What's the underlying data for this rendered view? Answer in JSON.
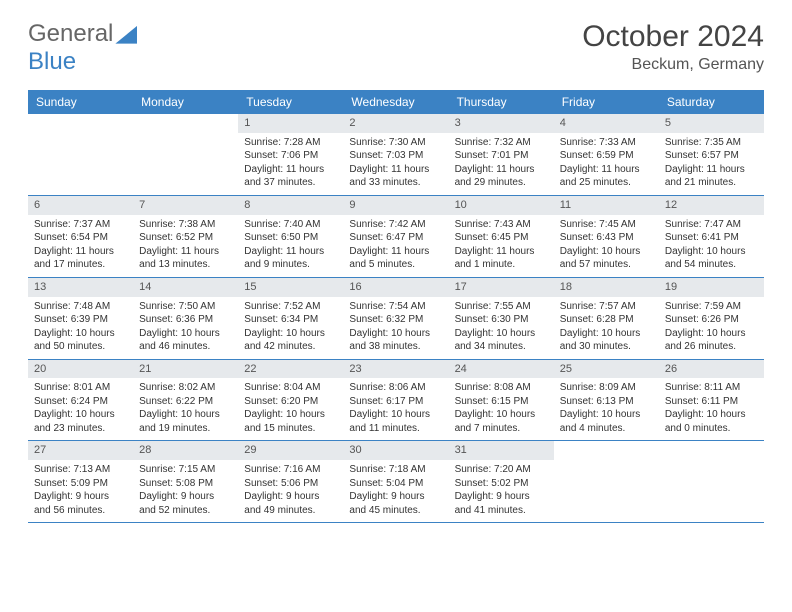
{
  "logo": {
    "text1": "General",
    "text2": "Blue"
  },
  "title": "October 2024",
  "location": "Beckum, Germany",
  "header_bg": "#3b82c4",
  "daynum_bg": "#e6e9ec",
  "row_border": "#3b82c4",
  "weekdays": [
    "Sunday",
    "Monday",
    "Tuesday",
    "Wednesday",
    "Thursday",
    "Friday",
    "Saturday"
  ],
  "weeks": [
    [
      null,
      null,
      {
        "n": "1",
        "sr": "Sunrise: 7:28 AM",
        "ss": "Sunset: 7:06 PM",
        "dl": "Daylight: 11 hours and 37 minutes."
      },
      {
        "n": "2",
        "sr": "Sunrise: 7:30 AM",
        "ss": "Sunset: 7:03 PM",
        "dl": "Daylight: 11 hours and 33 minutes."
      },
      {
        "n": "3",
        "sr": "Sunrise: 7:32 AM",
        "ss": "Sunset: 7:01 PM",
        "dl": "Daylight: 11 hours and 29 minutes."
      },
      {
        "n": "4",
        "sr": "Sunrise: 7:33 AM",
        "ss": "Sunset: 6:59 PM",
        "dl": "Daylight: 11 hours and 25 minutes."
      },
      {
        "n": "5",
        "sr": "Sunrise: 7:35 AM",
        "ss": "Sunset: 6:57 PM",
        "dl": "Daylight: 11 hours and 21 minutes."
      }
    ],
    [
      {
        "n": "6",
        "sr": "Sunrise: 7:37 AM",
        "ss": "Sunset: 6:54 PM",
        "dl": "Daylight: 11 hours and 17 minutes."
      },
      {
        "n": "7",
        "sr": "Sunrise: 7:38 AM",
        "ss": "Sunset: 6:52 PM",
        "dl": "Daylight: 11 hours and 13 minutes."
      },
      {
        "n": "8",
        "sr": "Sunrise: 7:40 AM",
        "ss": "Sunset: 6:50 PM",
        "dl": "Daylight: 11 hours and 9 minutes."
      },
      {
        "n": "9",
        "sr": "Sunrise: 7:42 AM",
        "ss": "Sunset: 6:47 PM",
        "dl": "Daylight: 11 hours and 5 minutes."
      },
      {
        "n": "10",
        "sr": "Sunrise: 7:43 AM",
        "ss": "Sunset: 6:45 PM",
        "dl": "Daylight: 11 hours and 1 minute."
      },
      {
        "n": "11",
        "sr": "Sunrise: 7:45 AM",
        "ss": "Sunset: 6:43 PM",
        "dl": "Daylight: 10 hours and 57 minutes."
      },
      {
        "n": "12",
        "sr": "Sunrise: 7:47 AM",
        "ss": "Sunset: 6:41 PM",
        "dl": "Daylight: 10 hours and 54 minutes."
      }
    ],
    [
      {
        "n": "13",
        "sr": "Sunrise: 7:48 AM",
        "ss": "Sunset: 6:39 PM",
        "dl": "Daylight: 10 hours and 50 minutes."
      },
      {
        "n": "14",
        "sr": "Sunrise: 7:50 AM",
        "ss": "Sunset: 6:36 PM",
        "dl": "Daylight: 10 hours and 46 minutes."
      },
      {
        "n": "15",
        "sr": "Sunrise: 7:52 AM",
        "ss": "Sunset: 6:34 PM",
        "dl": "Daylight: 10 hours and 42 minutes."
      },
      {
        "n": "16",
        "sr": "Sunrise: 7:54 AM",
        "ss": "Sunset: 6:32 PM",
        "dl": "Daylight: 10 hours and 38 minutes."
      },
      {
        "n": "17",
        "sr": "Sunrise: 7:55 AM",
        "ss": "Sunset: 6:30 PM",
        "dl": "Daylight: 10 hours and 34 minutes."
      },
      {
        "n": "18",
        "sr": "Sunrise: 7:57 AM",
        "ss": "Sunset: 6:28 PM",
        "dl": "Daylight: 10 hours and 30 minutes."
      },
      {
        "n": "19",
        "sr": "Sunrise: 7:59 AM",
        "ss": "Sunset: 6:26 PM",
        "dl": "Daylight: 10 hours and 26 minutes."
      }
    ],
    [
      {
        "n": "20",
        "sr": "Sunrise: 8:01 AM",
        "ss": "Sunset: 6:24 PM",
        "dl": "Daylight: 10 hours and 23 minutes."
      },
      {
        "n": "21",
        "sr": "Sunrise: 8:02 AM",
        "ss": "Sunset: 6:22 PM",
        "dl": "Daylight: 10 hours and 19 minutes."
      },
      {
        "n": "22",
        "sr": "Sunrise: 8:04 AM",
        "ss": "Sunset: 6:20 PM",
        "dl": "Daylight: 10 hours and 15 minutes."
      },
      {
        "n": "23",
        "sr": "Sunrise: 8:06 AM",
        "ss": "Sunset: 6:17 PM",
        "dl": "Daylight: 10 hours and 11 minutes."
      },
      {
        "n": "24",
        "sr": "Sunrise: 8:08 AM",
        "ss": "Sunset: 6:15 PM",
        "dl": "Daylight: 10 hours and 7 minutes."
      },
      {
        "n": "25",
        "sr": "Sunrise: 8:09 AM",
        "ss": "Sunset: 6:13 PM",
        "dl": "Daylight: 10 hours and 4 minutes."
      },
      {
        "n": "26",
        "sr": "Sunrise: 8:11 AM",
        "ss": "Sunset: 6:11 PM",
        "dl": "Daylight: 10 hours and 0 minutes."
      }
    ],
    [
      {
        "n": "27",
        "sr": "Sunrise: 7:13 AM",
        "ss": "Sunset: 5:09 PM",
        "dl": "Daylight: 9 hours and 56 minutes."
      },
      {
        "n": "28",
        "sr": "Sunrise: 7:15 AM",
        "ss": "Sunset: 5:08 PM",
        "dl": "Daylight: 9 hours and 52 minutes."
      },
      {
        "n": "29",
        "sr": "Sunrise: 7:16 AM",
        "ss": "Sunset: 5:06 PM",
        "dl": "Daylight: 9 hours and 49 minutes."
      },
      {
        "n": "30",
        "sr": "Sunrise: 7:18 AM",
        "ss": "Sunset: 5:04 PM",
        "dl": "Daylight: 9 hours and 45 minutes."
      },
      {
        "n": "31",
        "sr": "Sunrise: 7:20 AM",
        "ss": "Sunset: 5:02 PM",
        "dl": "Daylight: 9 hours and 41 minutes."
      },
      null,
      null
    ]
  ]
}
